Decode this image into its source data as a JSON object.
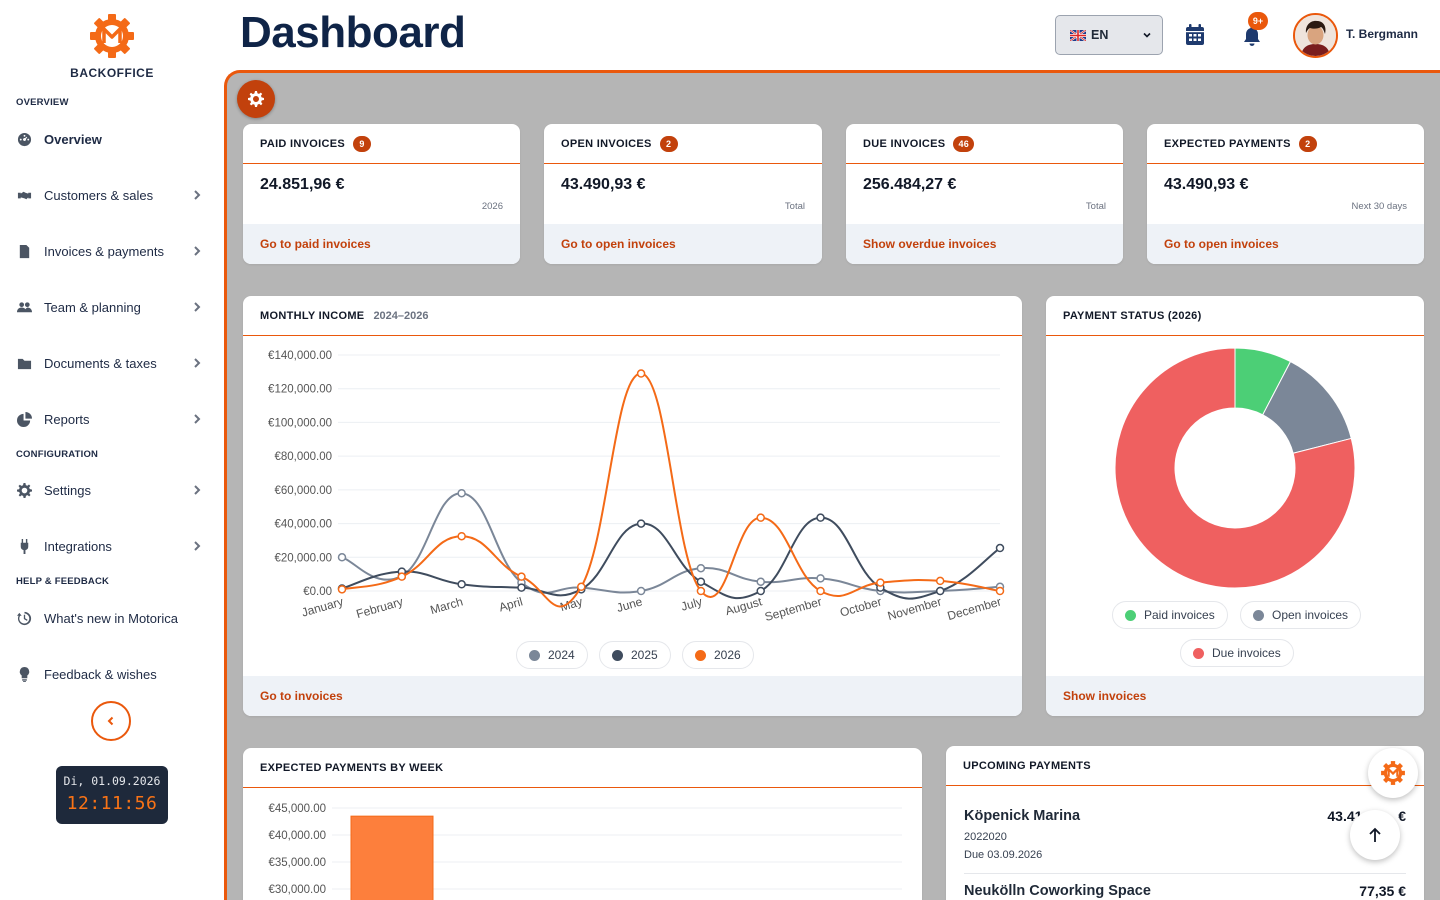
{
  "brand": {
    "name": "BACKOFFICE"
  },
  "sidebar": {
    "sections": [
      {
        "label": "OVERVIEW"
      },
      {
        "label": "CONFIGURATION"
      },
      {
        "label": "HELP & FEEDBACK"
      }
    ],
    "items": [
      {
        "label": "Overview",
        "icon": "gauge-icon"
      },
      {
        "label": "Customers & sales",
        "icon": "handshake-icon"
      },
      {
        "label": "Invoices & payments",
        "icon": "invoice-icon"
      },
      {
        "label": "Team & planning",
        "icon": "team-icon"
      },
      {
        "label": "Documents & taxes",
        "icon": "folder-icon"
      },
      {
        "label": "Reports",
        "icon": "pie-chart-icon"
      },
      {
        "label": "Settings",
        "icon": "gear-icon"
      },
      {
        "label": "Integrations",
        "icon": "plug-icon"
      },
      {
        "label": "What's new in Motorica",
        "icon": "history-icon"
      },
      {
        "label": "Feedback & wishes",
        "icon": "lightbulb-icon"
      }
    ],
    "clock": {
      "date": "Di, 01.09.2026",
      "time": "12:11:56"
    }
  },
  "header": {
    "title": "Dashboard",
    "language": "EN",
    "notifications_badge": "9+",
    "user_name": "T. Bergmann"
  },
  "stats": [
    {
      "title": "PAID INVOICES",
      "count": "9",
      "amount": "24.851,96 €",
      "sub": "2026",
      "link": "Go to paid invoices"
    },
    {
      "title": "OPEN INVOICES",
      "count": "2",
      "amount": "43.490,93 €",
      "sub": "Total",
      "link": "Go to open invoices"
    },
    {
      "title": "DUE INVOICES",
      "count": "46",
      "amount": "256.484,27 €",
      "sub": "Total",
      "link": "Show overdue invoices"
    },
    {
      "title": "EXPECTED PAYMENTS",
      "count": "2",
      "amount": "43.490,93 €",
      "sub": "Next 30 days",
      "link": "Go to open invoices"
    }
  ],
  "income": {
    "title": "MONTHLY INCOME",
    "range": "2024–2026",
    "link": "Go to invoices"
  },
  "status": {
    "title": "PAYMENT STATUS (2026)",
    "link": "Show invoices"
  },
  "weekly": {
    "title": "EXPECTED PAYMENTS BY WEEK"
  },
  "upcoming": {
    "title": "UPCOMING PAYMENTS",
    "items": [
      {
        "name": "Köpenick Marina",
        "amount": "43.41…,… €",
        "ref": "2022020",
        "due": "Due 03.09.2026"
      },
      {
        "name": "Neukölln Coworking Space",
        "amount": "77,35 €",
        "ref": "",
        "due": ""
      }
    ]
  },
  "colors": {
    "accent": "#ea580c",
    "s2024": "#7b8798",
    "s2025": "#3f4c5e",
    "s2026": "#f46a17",
    "paid": "#4ccf76",
    "open": "#7b8798",
    "due": "#ef6060"
  },
  "chart_data": [
    {
      "type": "line",
      "title": "MONTHLY INCOME",
      "categories": [
        "January",
        "February",
        "March",
        "April",
        "May",
        "June",
        "July",
        "August",
        "September",
        "October",
        "November",
        "December"
      ],
      "series": [
        {
          "name": "2024",
          "values": [
            20000,
            9000,
            58000,
            5000,
            2000,
            0,
            13500,
            5500,
            7500,
            0,
            0,
            2500
          ]
        },
        {
          "name": "2025",
          "values": [
            1500,
            11500,
            4000,
            2000,
            1000,
            40000,
            5500,
            0,
            43500,
            2000,
            0,
            25500
          ]
        },
        {
          "name": "2026",
          "values": [
            1000,
            8500,
            32500,
            8500,
            2500,
            129000,
            0,
            43500,
            0,
            5000,
            6000,
            0
          ]
        }
      ],
      "ylim": [
        0,
        140000
      ],
      "yticks": [
        "€0.00",
        "€20,000.00",
        "€40,000.00",
        "€60,000.00",
        "€80,000.00",
        "€100,000.00",
        "€120,000.00",
        "€140,000.00"
      ],
      "legend": "bottom",
      "grid": true
    },
    {
      "type": "pie",
      "title": "PAYMENT STATUS (2026)",
      "categories": [
        "Paid invoices",
        "Open invoices",
        "Due invoices"
      ],
      "values": [
        24851.96,
        43490.93,
        256484.27
      ],
      "legend": "bottom"
    },
    {
      "type": "bar",
      "title": "EXPECTED PAYMENTS BY WEEK",
      "categories": [
        ""
      ],
      "values": [
        43490.93
      ],
      "yticks": [
        "€30,000.00",
        "€35,000.00",
        "€40,000.00",
        "€45,000.00"
      ],
      "ylim": [
        30000,
        45000
      ],
      "grid": true
    }
  ]
}
